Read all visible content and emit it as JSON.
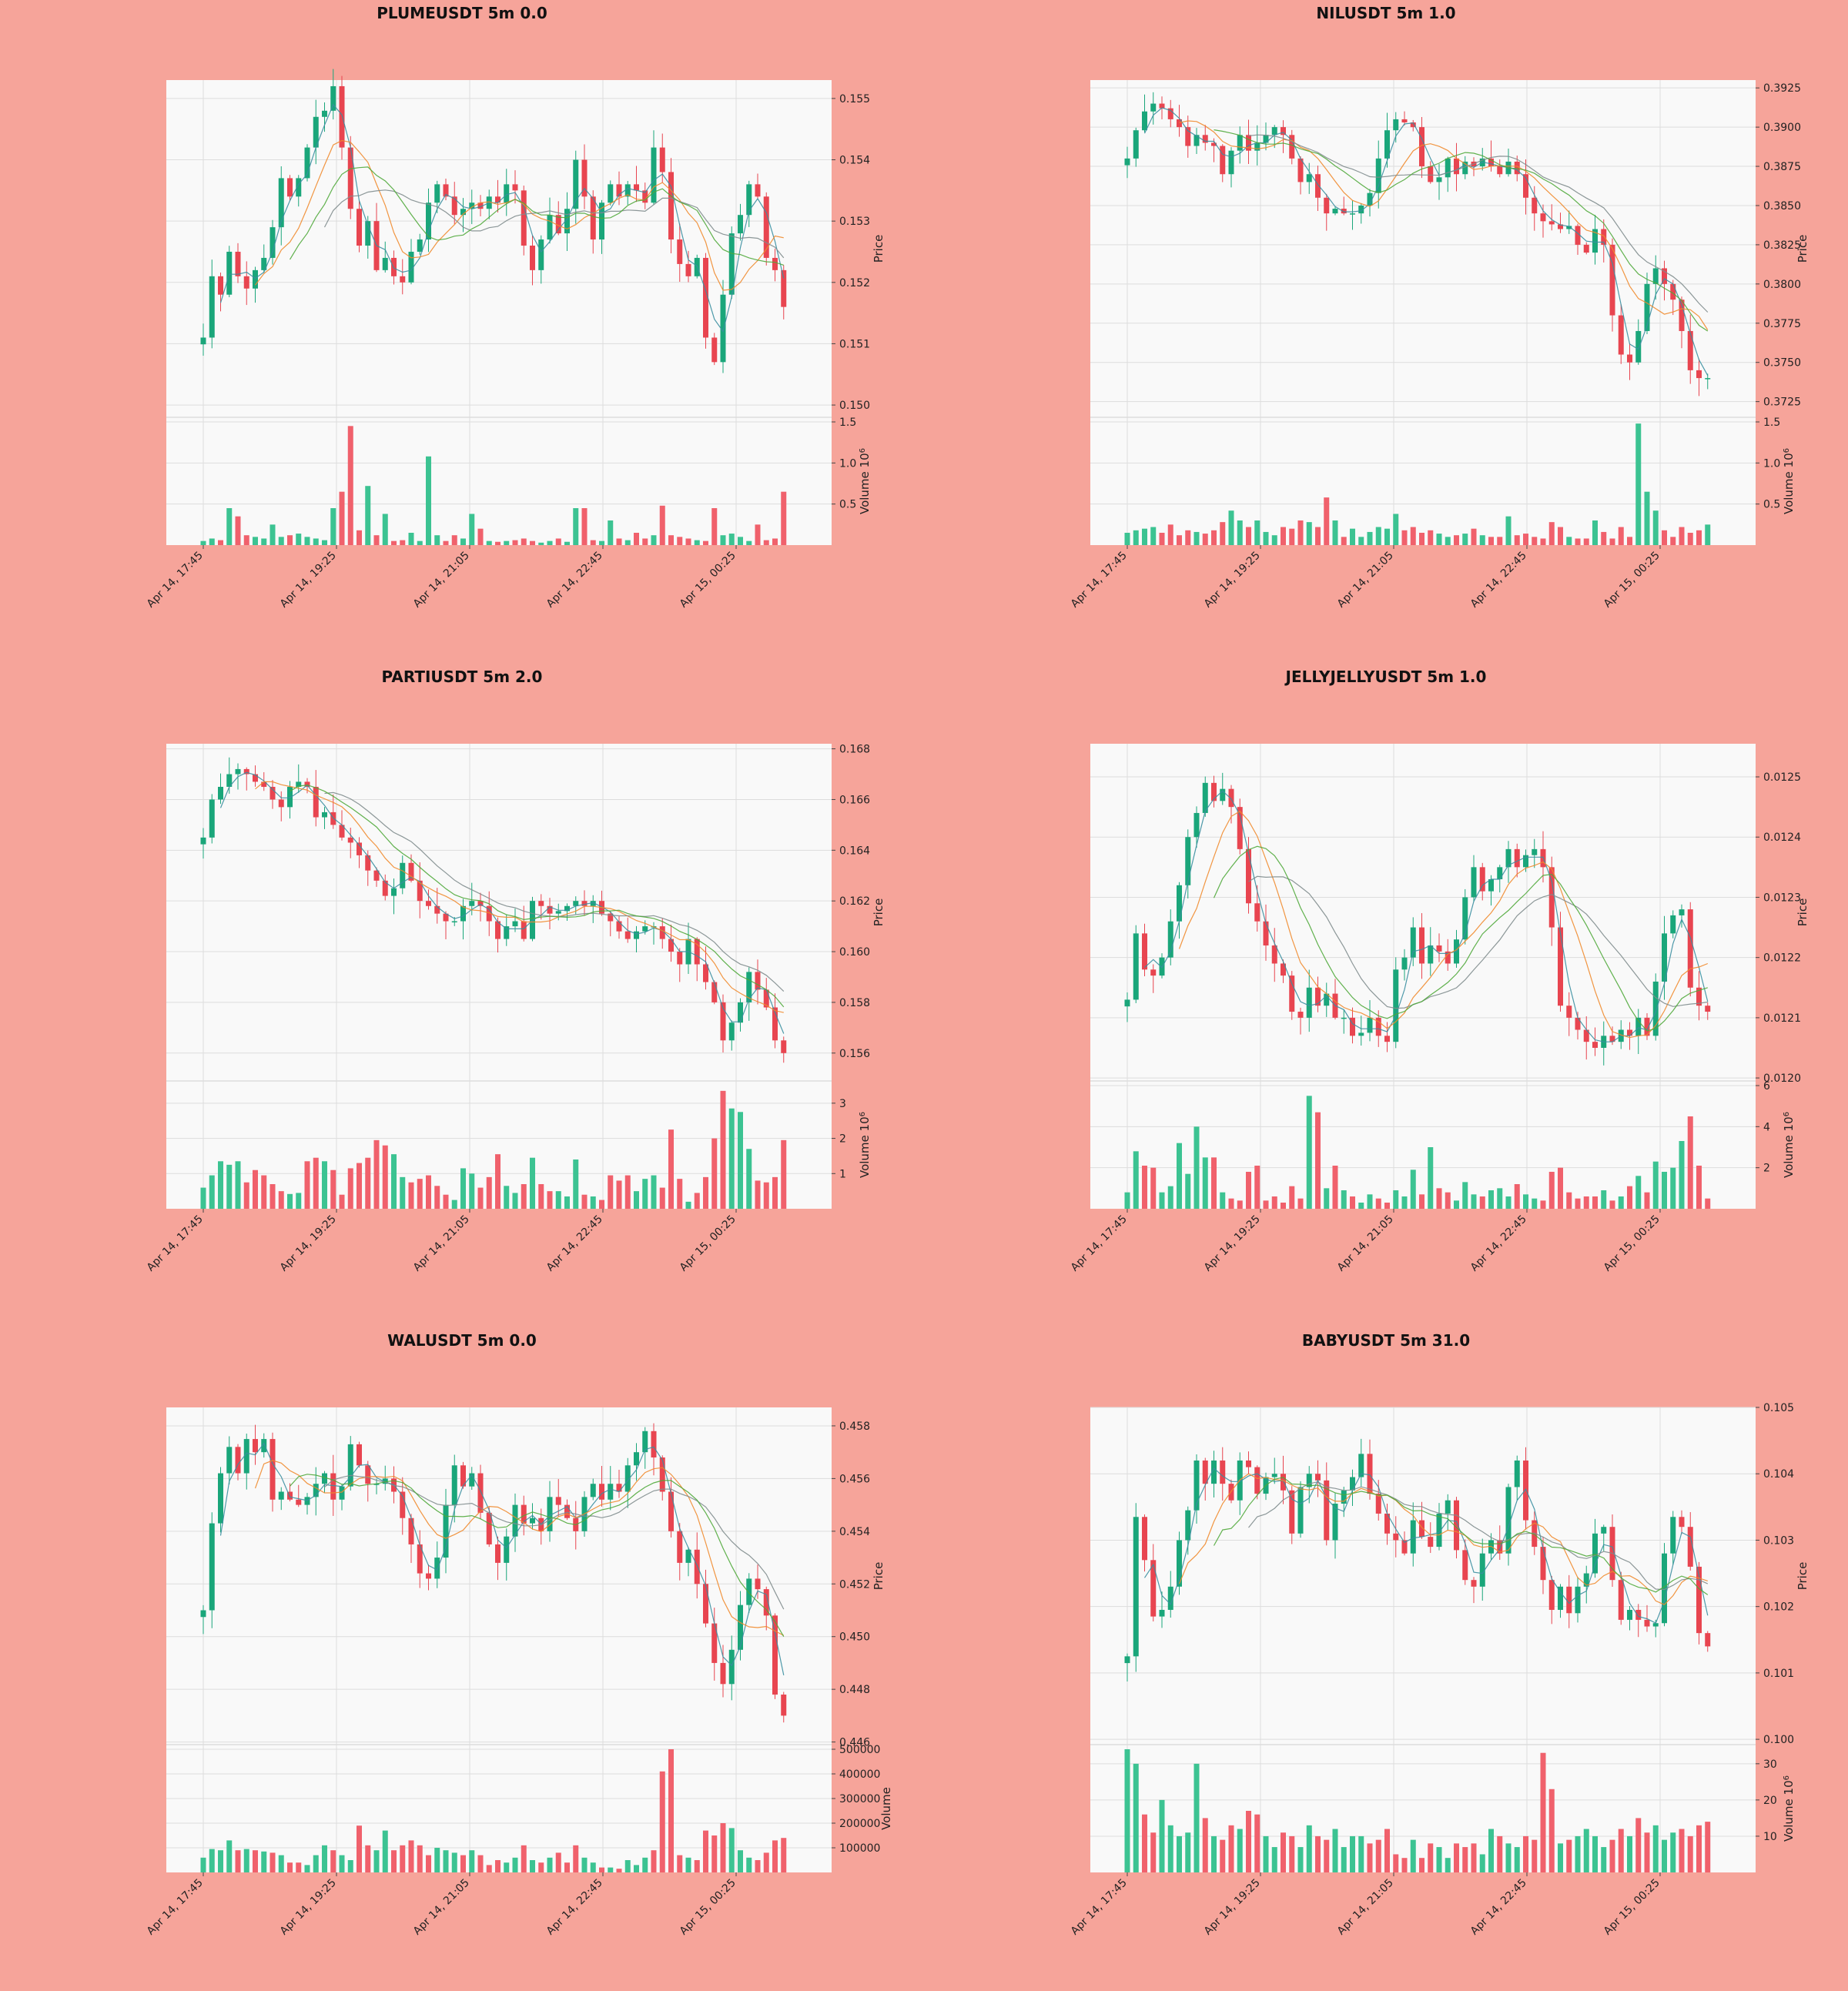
{
  "colors": {
    "background": "#f6a49a",
    "plot_bg": "#f9f9f9",
    "up": "#1aa67a",
    "down": "#e84550",
    "vol_up": "#3cc392",
    "vol_down": "#f0616c",
    "ma_fast": "#3a8ea0",
    "ma_mid": "#f08a2c",
    "ma_slow": "#7f8c8d",
    "ma_green": "#4fa83a"
  },
  "x_ticks": [
    "Apr 14, 17:45",
    "Apr 14, 19:25",
    "Apr 14, 21:05",
    "Apr 14, 22:45",
    "Apr 15, 00:25"
  ],
  "price_axis_label": "Price",
  "volume_axis_label": "Volume",
  "volume_exp": "10",
  "volume_exp_sup": "6",
  "chart_data": [
    {
      "type": "candlestick",
      "title": "PLUMEUSDT 5m 0.0",
      "ylabel": "Price",
      "ylim": [
        0.1498,
        0.1553
      ],
      "yticks": [
        "0.150",
        "0.151",
        "0.152",
        "0.153",
        "0.154",
        "0.155"
      ],
      "vol_label": "Volume",
      "vol_scale": true,
      "vol_max": 1.5,
      "vol_ticks": [
        "0.5",
        "1.0",
        "1.5"
      ],
      "close": [
        0.1511,
        0.1521,
        0.1518,
        0.1525,
        0.1521,
        0.1519,
        0.1522,
        0.1524,
        0.1529,
        0.1537,
        0.1534,
        0.1537,
        0.1542,
        0.1547,
        0.1548,
        0.1552,
        0.1542,
        0.1532,
        0.1526,
        0.153,
        0.1522,
        0.1524,
        0.1521,
        0.152,
        0.1525,
        0.1527,
        0.1533,
        0.1536,
        0.1534,
        0.1531,
        0.1532,
        0.1533,
        0.1532,
        0.1534,
        0.1533,
        0.1536,
        0.1535,
        0.1526,
        0.1522,
        0.1527,
        0.1531,
        0.1528,
        0.1532,
        0.154,
        0.1534,
        0.1527,
        0.1533,
        0.1536,
        0.1534,
        0.1536,
        0.1535,
        0.1533,
        0.1542,
        0.1538,
        0.1527,
        0.1523,
        0.1521,
        0.1524,
        0.1511,
        0.1507,
        0.1518,
        0.1528,
        0.1531,
        0.1536,
        0.1534,
        0.1524,
        0.1522,
        0.1516
      ],
      "volume": [
        0.05,
        0.08,
        0.06,
        0.45,
        0.35,
        0.12,
        0.1,
        0.08,
        0.25,
        0.1,
        0.12,
        0.14,
        0.1,
        0.08,
        0.06,
        0.45,
        0.65,
        1.45,
        0.18,
        0.72,
        0.12,
        0.38,
        0.05,
        0.06,
        0.15,
        0.05,
        1.08,
        0.12,
        0.05,
        0.12,
        0.08,
        0.38,
        0.2,
        0.05,
        0.04,
        0.05,
        0.06,
        0.08,
        0.05,
        0.03,
        0.05,
        0.08,
        0.04,
        0.45,
        0.45,
        0.06,
        0.05,
        0.3,
        0.08,
        0.06,
        0.15,
        0.08,
        0.12,
        0.48,
        0.12,
        0.1,
        0.08,
        0.06,
        0.05,
        0.45,
        0.12,
        0.14,
        0.1,
        0.05,
        0.25,
        0.06,
        0.08,
        0.65
      ]
    },
    {
      "type": "candlestick",
      "title": "NILUSDT 5m 1.0",
      "ylabel": "Price",
      "ylim": [
        0.3715,
        0.393
      ],
      "yticks": [
        "0.3725",
        "0.3750",
        "0.3775",
        "0.3800",
        "0.3825",
        "0.3850",
        "0.3875",
        "0.3900",
        "0.3925"
      ],
      "vol_label": "Volume",
      "vol_scale": true,
      "vol_max": 1.5,
      "vol_ticks": [
        "0.5",
        "1.0",
        "1.5"
      ],
      "close": [
        0.388,
        0.3898,
        0.391,
        0.3915,
        0.3912,
        0.3905,
        0.39,
        0.3888,
        0.3895,
        0.389,
        0.3888,
        0.387,
        0.3885,
        0.3895,
        0.3885,
        0.389,
        0.3895,
        0.39,
        0.3895,
        0.388,
        0.3865,
        0.387,
        0.3855,
        0.3845,
        0.3848,
        0.3845,
        0.3845,
        0.385,
        0.3858,
        0.388,
        0.3898,
        0.3905,
        0.3903,
        0.39,
        0.3875,
        0.3865,
        0.3868,
        0.388,
        0.387,
        0.3878,
        0.3875,
        0.388,
        0.3875,
        0.387,
        0.3878,
        0.387,
        0.3855,
        0.3845,
        0.384,
        0.3838,
        0.3835,
        0.3837,
        0.3825,
        0.382,
        0.3835,
        0.3825,
        0.378,
        0.3755,
        0.375,
        0.377,
        0.38,
        0.381,
        0.38,
        0.379,
        0.377,
        0.3745,
        0.374,
        0.374
      ],
      "volume": [
        0.15,
        0.18,
        0.2,
        0.22,
        0.15,
        0.25,
        0.12,
        0.18,
        0.16,
        0.14,
        0.18,
        0.28,
        0.42,
        0.3,
        0.22,
        0.3,
        0.16,
        0.12,
        0.22,
        0.2,
        0.3,
        0.28,
        0.22,
        0.58,
        0.3,
        0.1,
        0.2,
        0.1,
        0.16,
        0.22,
        0.2,
        0.38,
        0.18,
        0.22,
        0.15,
        0.18,
        0.14,
        0.1,
        0.12,
        0.14,
        0.2,
        0.12,
        0.1,
        0.1,
        0.35,
        0.12,
        0.14,
        0.1,
        0.08,
        0.28,
        0.22,
        0.1,
        0.08,
        0.08,
        0.3,
        0.16,
        0.08,
        0.22,
        0.1,
        1.48,
        0.65,
        0.42,
        0.18,
        0.1,
        0.22,
        0.15,
        0.18,
        0.25
      ]
    },
    {
      "type": "candlestick",
      "title": "PARTIUSDT 5m 2.0",
      "ylabel": "Price",
      "ylim": [
        0.1549,
        0.1682
      ],
      "yticks": [
        "0.156",
        "0.158",
        "0.160",
        "0.162",
        "0.164",
        "0.166",
        "0.168"
      ],
      "vol_label": "Volume",
      "vol_scale": true,
      "vol_max": 3.5,
      "vol_ticks": [
        "1",
        "2",
        "3"
      ],
      "close": [
        0.1645,
        0.166,
        0.1665,
        0.167,
        0.1672,
        0.167,
        0.1667,
        0.1665,
        0.166,
        0.1657,
        0.1665,
        0.1667,
        0.1665,
        0.1653,
        0.1655,
        0.165,
        0.1645,
        0.1643,
        0.1638,
        0.1632,
        0.1628,
        0.1622,
        0.1625,
        0.1635,
        0.1628,
        0.162,
        0.1618,
        0.1615,
        0.1612,
        0.1612,
        0.1618,
        0.162,
        0.1618,
        0.1612,
        0.1605,
        0.161,
        0.1612,
        0.1605,
        0.162,
        0.1618,
        0.1615,
        0.1616,
        0.1618,
        0.162,
        0.1618,
        0.162,
        0.1615,
        0.1612,
        0.1608,
        0.1605,
        0.1608,
        0.161,
        0.161,
        0.1605,
        0.16,
        0.1595,
        0.1605,
        0.1595,
        0.1588,
        0.158,
        0.1565,
        0.1572,
        0.158,
        0.1592,
        0.1585,
        0.1578,
        0.1565,
        0.156
      ],
      "volume": [
        0.6,
        0.95,
        1.35,
        1.25,
        1.35,
        0.75,
        1.1,
        0.95,
        0.7,
        0.5,
        0.42,
        0.45,
        1.35,
        1.45,
        1.35,
        1.1,
        0.4,
        1.15,
        1.3,
        1.45,
        1.95,
        1.8,
        1.55,
        0.9,
        0.75,
        0.85,
        0.95,
        0.65,
        0.4,
        0.25,
        1.15,
        1.0,
        0.6,
        0.9,
        1.55,
        0.65,
        0.45,
        0.7,
        1.45,
        0.7,
        0.5,
        0.5,
        0.35,
        1.4,
        0.4,
        0.35,
        0.25,
        0.95,
        0.8,
        0.95,
        0.5,
        0.85,
        0.95,
        0.6,
        2.25,
        0.85,
        0.2,
        0.45,
        0.9,
        2.0,
        3.35,
        2.85,
        2.75,
        1.7,
        0.8,
        0.75,
        0.9,
        1.95
      ]
    },
    {
      "type": "candlestick",
      "title": "JELLYJELLYUSDT 5m 1.0",
      "ylabel": "Price",
      "ylim": [
        0.011995,
        0.012555
      ],
      "yticks": [
        "0.0120",
        "0.0121",
        "0.0122",
        "0.0123",
        "0.0124",
        "0.0125"
      ],
      "vol_label": "Volume",
      "vol_scale": true,
      "vol_max": 6,
      "vol_ticks": [
        "2",
        "4",
        "6"
      ],
      "close": [
        0.01213,
        0.01224,
        0.01218,
        0.01217,
        0.0122,
        0.01226,
        0.01232,
        0.0124,
        0.01244,
        0.01249,
        0.01246,
        0.01248,
        0.01245,
        0.01238,
        0.01229,
        0.01226,
        0.01222,
        0.01219,
        0.01217,
        0.01211,
        0.0121,
        0.01215,
        0.01212,
        0.01214,
        0.0121,
        0.0121,
        0.01207,
        0.012075,
        0.0121,
        0.01207,
        0.01206,
        0.01218,
        0.0122,
        0.01225,
        0.01219,
        0.01222,
        0.01221,
        0.01219,
        0.01223,
        0.0123,
        0.01235,
        0.01231,
        0.01233,
        0.01235,
        0.01238,
        0.01235,
        0.01237,
        0.01238,
        0.01235,
        0.01225,
        0.01212,
        0.0121,
        0.01208,
        0.01206,
        0.01205,
        0.01207,
        0.01206,
        0.01208,
        0.01207,
        0.0121,
        0.01207,
        0.01216,
        0.01224,
        0.01227,
        0.01228,
        0.01215,
        0.01212,
        0.01211
      ],
      "volume": [
        0.8,
        2.8,
        2.1,
        2.0,
        0.8,
        1.1,
        3.2,
        1.7,
        4.0,
        2.5,
        2.5,
        0.8,
        0.5,
        0.4,
        1.8,
        2.1,
        0.4,
        0.6,
        0.3,
        1.1,
        0.5,
        5.5,
        4.7,
        1.0,
        2.1,
        0.9,
        0.6,
        0.3,
        0.7,
        0.5,
        0.3,
        0.9,
        0.6,
        1.9,
        0.7,
        3.0,
        1.0,
        0.8,
        0.4,
        1.3,
        0.7,
        0.6,
        0.9,
        1.0,
        0.6,
        1.2,
        0.7,
        0.5,
        0.4,
        1.8,
        2.0,
        0.8,
        0.5,
        0.6,
        0.6,
        0.9,
        0.4,
        0.6,
        1.1,
        1.6,
        0.8,
        2.3,
        1.8,
        2.0,
        3.3,
        4.5,
        2.1,
        0.5
      ]
    },
    {
      "type": "candlestick",
      "title": "WALUSDT 5m 0.0",
      "ylabel": "Price",
      "ylim": [
        0.4459,
        0.4587
      ],
      "yticks": [
        "0.446",
        "0.448",
        "0.450",
        "0.452",
        "0.454",
        "0.456",
        "0.458"
      ],
      "vol_label": "Volume",
      "vol_scale": false,
      "vol_max": 500000,
      "vol_ticks": [
        "100000",
        "200000",
        "300000",
        "400000",
        "500000"
      ],
      "close": [
        0.451,
        0.4543,
        0.4562,
        0.4572,
        0.4562,
        0.4575,
        0.457,
        0.4575,
        0.4552,
        0.4555,
        0.4552,
        0.455,
        0.4553,
        0.4558,
        0.4562,
        0.4552,
        0.4557,
        0.4573,
        0.4565,
        0.4558,
        0.4558,
        0.456,
        0.4555,
        0.4545,
        0.4535,
        0.4524,
        0.4522,
        0.453,
        0.455,
        0.4565,
        0.4557,
        0.4562,
        0.4547,
        0.4535,
        0.4528,
        0.4538,
        0.455,
        0.4543,
        0.4545,
        0.454,
        0.4553,
        0.455,
        0.4545,
        0.454,
        0.4553,
        0.4558,
        0.4552,
        0.4558,
        0.4555,
        0.4565,
        0.457,
        0.4578,
        0.4568,
        0.4555,
        0.454,
        0.4528,
        0.4533,
        0.452,
        0.4505,
        0.449,
        0.4482,
        0.4495,
        0.4512,
        0.4522,
        0.4518,
        0.4508,
        0.4478,
        0.447
      ],
      "volume": [
        60000,
        95000,
        90000,
        130000,
        90000,
        95000,
        90000,
        85000,
        80000,
        70000,
        40000,
        40000,
        30000,
        70000,
        110000,
        90000,
        70000,
        50000,
        190000,
        110000,
        90000,
        170000,
        90000,
        110000,
        130000,
        110000,
        70000,
        100000,
        90000,
        80000,
        70000,
        90000,
        70000,
        30000,
        50000,
        40000,
        60000,
        110000,
        50000,
        40000,
        60000,
        80000,
        40000,
        110000,
        60000,
        40000,
        20000,
        20000,
        15000,
        50000,
        30000,
        60000,
        90000,
        410000,
        500000,
        70000,
        60000,
        50000,
        170000,
        150000,
        200000,
        180000,
        90000,
        60000,
        50000,
        80000,
        130000,
        140000
      ]
    },
    {
      "type": "candlestick",
      "title": "BABYUSDT 5m 31.0",
      "ylabel": "Price",
      "ylim": [
        0.09992,
        0.105
      ],
      "yticks": [
        "0.100",
        "0.101",
        "0.102",
        "0.103",
        "0.104",
        "0.105"
      ],
      "vol_label": "Volume",
      "vol_scale": true,
      "vol_max": 34,
      "vol_ticks": [
        "10",
        "20",
        "30"
      ],
      "close": [
        0.10125,
        0.10335,
        0.1027,
        0.10185,
        0.10195,
        0.1023,
        0.103,
        0.10345,
        0.1042,
        0.10385,
        0.1042,
        0.10385,
        0.1036,
        0.1042,
        0.1041,
        0.1037,
        0.10395,
        0.104,
        0.10375,
        0.1031,
        0.1038,
        0.104,
        0.1039,
        0.103,
        0.10355,
        0.10375,
        0.10395,
        0.1043,
        0.1037,
        0.1034,
        0.1031,
        0.103,
        0.1028,
        0.1033,
        0.10305,
        0.1029,
        0.1034,
        0.1036,
        0.10285,
        0.1024,
        0.1023,
        0.1028,
        0.103,
        0.1028,
        0.1038,
        0.1042,
        0.1033,
        0.1029,
        0.1024,
        0.10195,
        0.1023,
        0.1019,
        0.1023,
        0.1025,
        0.1031,
        0.1032,
        0.1024,
        0.1018,
        0.10195,
        0.1018,
        0.1017,
        0.10175,
        0.1028,
        0.10335,
        0.1032,
        0.1026,
        0.1016,
        0.1014
      ],
      "volume": [
        34,
        30,
        16,
        11,
        20,
        13,
        10,
        11,
        30,
        15,
        10,
        9,
        13,
        12,
        17,
        16,
        10,
        7,
        11,
        10,
        7,
        13,
        10,
        9,
        12,
        7,
        10,
        10,
        8,
        9,
        12,
        5,
        4,
        9,
        4,
        8,
        7,
        4,
        8,
        7,
        8,
        5,
        12,
        10,
        8,
        7,
        10,
        9,
        33,
        23,
        8,
        9,
        10,
        12,
        10,
        7,
        9,
        12,
        10,
        15,
        11,
        13,
        9,
        11,
        12,
        10,
        13,
        14
      ]
    }
  ]
}
